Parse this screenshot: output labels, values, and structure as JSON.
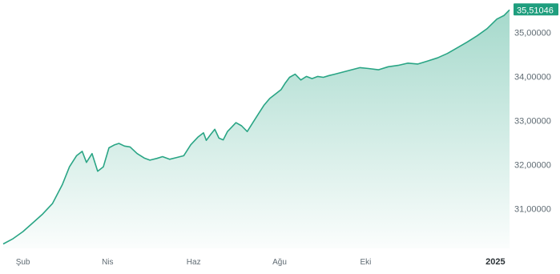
{
  "colors": {
    "line": "#2aa585",
    "fill_top": "#2aa585",
    "badge": "#1f9e7e",
    "grid": "#ffffff"
  },
  "chart_data": {
    "type": "area",
    "title": "",
    "xlabel": "",
    "ylabel": "",
    "x_ticks": [
      {
        "label": "Şub",
        "x": "2024-02-01",
        "bold": false
      },
      {
        "label": "Nis",
        "x": "2024-04-01",
        "bold": false
      },
      {
        "label": "Haz",
        "x": "2024-06-01",
        "bold": false
      },
      {
        "label": "Ağu",
        "x": "2024-08-01",
        "bold": false
      },
      {
        "label": "Eki",
        "x": "2024-10-01",
        "bold": false
      },
      {
        "label": "2025",
        "x": "2025-01-01",
        "bold": true
      }
    ],
    "y_ticks": [
      {
        "label": "35,00000",
        "value": 35.0
      },
      {
        "label": "34,00000",
        "value": 34.0
      },
      {
        "label": "33,00000",
        "value": 33.0
      },
      {
        "label": "32,00000",
        "value": 32.0
      },
      {
        "label": "31,00000",
        "value": 31.0
      }
    ],
    "ylim": [
      30.1,
      35.66
    ],
    "xlim": [
      "2024-01-18",
      "2025-01-11"
    ],
    "last_value_label": "35,51046",
    "last_value": 35.51,
    "series": [
      {
        "x": [
          "2024-01-18",
          "2024-01-25",
          "2024-02-01",
          "2024-02-08",
          "2024-02-15",
          "2024-02-22",
          "2024-02-29",
          "2024-03-05",
          "2024-03-10",
          "2024-03-14",
          "2024-03-17",
          "2024-03-21",
          "2024-03-25",
          "2024-03-29",
          "2024-04-02",
          "2024-04-06",
          "2024-04-09",
          "2024-04-13",
          "2024-04-17",
          "2024-04-22",
          "2024-04-27",
          "2024-05-01",
          "2024-05-06",
          "2024-05-10",
          "2024-05-15",
          "2024-05-20",
          "2024-05-25",
          "2024-05-30",
          "2024-06-04",
          "2024-06-08",
          "2024-06-10",
          "2024-06-13",
          "2024-06-16",
          "2024-06-19",
          "2024-06-22",
          "2024-06-25",
          "2024-06-28",
          "2024-07-01",
          "2024-07-05",
          "2024-07-09",
          "2024-07-13",
          "2024-07-17",
          "2024-07-21",
          "2024-07-25",
          "2024-07-29",
          "2024-08-02",
          "2024-08-05",
          "2024-08-08",
          "2024-08-12",
          "2024-08-16",
          "2024-08-20",
          "2024-08-24",
          "2024-08-28",
          "2024-09-01",
          "2024-09-05",
          "2024-09-09",
          "2024-09-15",
          "2024-09-21",
          "2024-09-27",
          "2024-10-03",
          "2024-10-10",
          "2024-10-17",
          "2024-10-24",
          "2024-10-31",
          "2024-11-07",
          "2024-11-14",
          "2024-11-21",
          "2024-11-28",
          "2024-12-05",
          "2024-12-12",
          "2024-12-19",
          "2024-12-26",
          "2025-01-02",
          "2025-01-07",
          "2025-01-11"
        ],
        "values": [
          30.2,
          30.32,
          30.48,
          30.68,
          30.88,
          31.12,
          31.55,
          31.95,
          32.2,
          32.3,
          32.05,
          32.25,
          31.85,
          31.95,
          32.38,
          32.45,
          32.48,
          32.42,
          32.4,
          32.25,
          32.15,
          32.1,
          32.14,
          32.18,
          32.12,
          32.16,
          32.2,
          32.45,
          32.62,
          32.72,
          32.55,
          32.68,
          32.8,
          32.6,
          32.56,
          32.75,
          32.85,
          32.95,
          32.88,
          32.75,
          32.95,
          33.15,
          33.35,
          33.5,
          33.6,
          33.7,
          33.85,
          33.98,
          34.05,
          33.92,
          34.0,
          33.95,
          34.0,
          33.98,
          34.02,
          34.05,
          34.1,
          34.15,
          34.2,
          34.18,
          34.15,
          34.22,
          34.25,
          34.3,
          34.28,
          34.35,
          34.42,
          34.52,
          34.65,
          34.78,
          34.92,
          35.08,
          35.3,
          35.38,
          35.51
        ]
      }
    ],
    "grid": false,
    "legend": "none"
  }
}
